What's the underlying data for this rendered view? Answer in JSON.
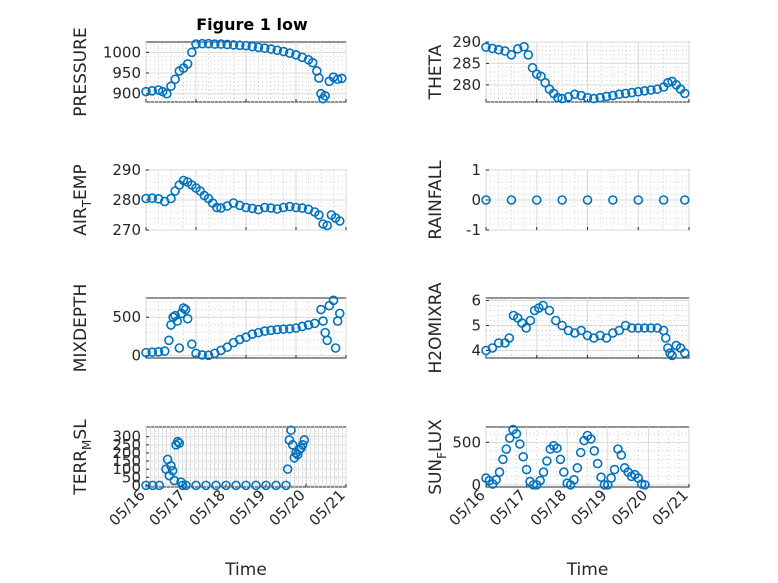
{
  "figure": {
    "title": "Figure 1 low",
    "marker_color": "#0072BD",
    "marker": "circle",
    "grid": "on (major + minor)"
  },
  "chart_data": [
    {
      "type": "scatter",
      "title": "Figure 1 low",
      "ylabel": [
        "PRESSURE"
      ],
      "xlabel": "",
      "xlim": [
        "05/16",
        "05/20"
      ],
      "ylim": [
        880,
        1025
      ],
      "yticks": [
        "900",
        "950",
        "1000"
      ],
      "xticks": [],
      "x": [
        "05/16 00:00",
        "05/16 03:00",
        "05/16 06:00",
        "05/16 08:00",
        "05/16 10:00",
        "05/16 12:00",
        "05/16 14:00",
        "05/16 16:00",
        "05/16 18:00",
        "05/16 20:00",
        "05/16 22:00",
        "05/17 00:00",
        "05/17 03:00",
        "05/17 06:00",
        "05/17 09:00",
        "05/17 12:00",
        "05/17 15:00",
        "05/17 18:00",
        "05/17 21:00",
        "05/18 00:00",
        "05/18 03:00",
        "05/18 06:00",
        "05/18 09:00",
        "05/18 12:00",
        "05/18 15:00",
        "05/18 18:00",
        "05/18 21:00",
        "05/19 00:00",
        "05/19 03:00",
        "05/19 06:00",
        "05/19 08:00",
        "05/19 10:00",
        "05/19 11:00",
        "05/19 12:00",
        "05/19 13:00",
        "05/19 14:00",
        "05/19 16:00",
        "05/19 18:00",
        "05/19 20:00",
        "05/19 22:00"
      ],
      "y": [
        905,
        907,
        909,
        905,
        900,
        918,
        935,
        955,
        962,
        972,
        1000,
        1020,
        1021,
        1021,
        1020,
        1020,
        1019,
        1018,
        1017,
        1016,
        1014,
        1012,
        1010,
        1008,
        1005,
        1002,
        998,
        994,
        988,
        982,
        975,
        955,
        938,
        900,
        888,
        895,
        930,
        940,
        935,
        937
      ]
    },
    {
      "type": "scatter",
      "title": "",
      "ylabel": [
        "THETA"
      ],
      "xlabel": "",
      "xlim": [
        "05/16",
        "05/20"
      ],
      "ylim": [
        276,
        290
      ],
      "yticks": [
        "280",
        "285",
        "290"
      ],
      "xticks": [],
      "x": [
        "05/16 00:00",
        "05/16 03:00",
        "05/16 06:00",
        "05/16 09:00",
        "05/16 12:00",
        "05/16 15:00",
        "05/16 18:00",
        "05/16 20:00",
        "05/16 22:00",
        "05/17 00:00",
        "05/17 02:00",
        "05/17 04:00",
        "05/17 06:00",
        "05/17 08:00",
        "05/17 10:00",
        "05/17 12:00",
        "05/17 15:00",
        "05/17 18:00",
        "05/17 21:00",
        "05/18 00:00",
        "05/18 03:00",
        "05/18 06:00",
        "05/18 09:00",
        "05/18 12:00",
        "05/18 15:00",
        "05/18 18:00",
        "05/18 21:00",
        "05/19 00:00",
        "05/19 03:00",
        "05/19 06:00",
        "05/19 09:00",
        "05/19 12:00",
        "05/19 14:00",
        "05/19 16:00",
        "05/19 18:00",
        "05/19 20:00",
        "05/19 22:00"
      ],
      "y": [
        288.8,
        288.5,
        288.2,
        287.9,
        287.0,
        288.4,
        288.9,
        287.0,
        284.0,
        282.5,
        282.0,
        280.5,
        279.0,
        278.0,
        277.0,
        276.8,
        277.2,
        277.8,
        277.5,
        277.0,
        276.8,
        277.0,
        277.3,
        277.5,
        277.8,
        278.0,
        278.2,
        278.4,
        278.6,
        278.8,
        279.0,
        279.5,
        280.5,
        280.8,
        280.0,
        279.0,
        278.0
      ]
    },
    {
      "type": "scatter",
      "title": "",
      "ylabel": [
        "AIR",
        "T",
        "EMP"
      ],
      "xlabel": "",
      "xlim": [
        "05/16",
        "05/20"
      ],
      "ylim": [
        270,
        290
      ],
      "yticks": [
        "270",
        "280",
        "290"
      ],
      "xticks": [],
      "x": [
        "05/16 00:00",
        "05/16 03:00",
        "05/16 06:00",
        "05/16 09:00",
        "05/16 12:00",
        "05/16 14:00",
        "05/16 16:00",
        "05/16 18:00",
        "05/16 20:00",
        "05/16 22:00",
        "05/17 00:00",
        "05/17 02:00",
        "05/17 04:00",
        "05/17 06:00",
        "05/17 08:00",
        "05/17 10:00",
        "05/17 12:00",
        "05/17 15:00",
        "05/17 18:00",
        "05/17 21:00",
        "05/18 00:00",
        "05/18 03:00",
        "05/18 06:00",
        "05/18 09:00",
        "05/18 12:00",
        "05/18 15:00",
        "05/18 18:00",
        "05/18 21:00",
        "05/19 00:00",
        "05/19 03:00",
        "05/19 06:00",
        "05/19 09:00",
        "05/19 11:00",
        "05/19 13:00",
        "05/19 15:00",
        "05/19 17:00",
        "05/19 19:00",
        "05/19 21:00"
      ],
      "y": [
        280.5,
        280.6,
        280.4,
        279.5,
        280.5,
        283.0,
        285.0,
        286.5,
        286.0,
        285.0,
        284.0,
        283.0,
        281.5,
        280.5,
        279.0,
        277.5,
        277.3,
        278.0,
        279.0,
        278.2,
        277.5,
        277.2,
        276.8,
        277.5,
        277.3,
        277.0,
        277.5,
        277.8,
        277.5,
        277.3,
        276.9,
        276.0,
        275.0,
        272.0,
        271.5,
        275.0,
        274.0,
        273.0
      ]
    },
    {
      "type": "scatter",
      "title": "",
      "ylabel": [
        "RAINFALL"
      ],
      "xlabel": "",
      "xlim": [
        "05/16",
        "05/20"
      ],
      "ylim": [
        -1,
        1
      ],
      "yticks": [
        "-1",
        "0",
        "1"
      ],
      "xticks": [],
      "x": [
        "05/16 00:00",
        "05/16 12:00",
        "05/17 00:00",
        "05/17 12:00",
        "05/18 00:00",
        "05/18 12:00",
        "05/19 00:00",
        "05/19 12:00",
        "05/19 22:00"
      ],
      "y": [
        0,
        0,
        0,
        0,
        0,
        0,
        0,
        0,
        0
      ]
    },
    {
      "type": "scatter",
      "title": "",
      "ylabel": [
        "MIXDEPTH"
      ],
      "xlabel": "",
      "xlim": [
        "05/16",
        "05/20"
      ],
      "ylim": [
        -30,
        750
      ],
      "yticks": [
        "0",
        "500"
      ],
      "xticks": [],
      "x": [
        "05/16 00:00",
        "05/16 03:00",
        "05/16 06:00",
        "05/16 09:00",
        "05/16 11:00",
        "05/16 12:00",
        "05/16 13:00",
        "05/16 14:00",
        "05/16 15:00",
        "05/16 16:00",
        "05/16 17:00",
        "05/16 18:00",
        "05/16 19:00",
        "05/16 20:00",
        "05/16 22:00",
        "05/17 00:00",
        "05/17 03:00",
        "05/17 06:00",
        "05/17 09:00",
        "05/17 12:00",
        "05/17 15:00",
        "05/17 18:00",
        "05/17 21:00",
        "05/18 00:00",
        "05/18 03:00",
        "05/18 06:00",
        "05/18 09:00",
        "05/18 12:00",
        "05/18 15:00",
        "05/18 18:00",
        "05/18 21:00",
        "05/19 00:00",
        "05/19 03:00",
        "05/19 06:00",
        "05/19 09:00",
        "05/19 12:00",
        "05/19 13:00",
        "05/19 14:00",
        "05/19 15:00",
        "05/19 16:00",
        "05/19 18:00",
        "05/19 19:00",
        "05/19 20:00",
        "05/19 21:00"
      ],
      "y": [
        40,
        45,
        50,
        60,
        200,
        400,
        500,
        520,
        450,
        100,
        550,
        620,
        600,
        480,
        150,
        30,
        10,
        5,
        30,
        70,
        110,
        170,
        210,
        240,
        280,
        300,
        320,
        330,
        340,
        345,
        350,
        360,
        380,
        400,
        420,
        600,
        450,
        300,
        200,
        650,
        720,
        100,
        450,
        550
      ]
    },
    {
      "type": "scatter",
      "title": "",
      "ylabel": [
        "H2OMIXRA"
      ],
      "xlabel": "",
      "xlim": [
        "05/16",
        "05/20"
      ],
      "ylim": [
        3.7,
        6.1
      ],
      "yticks": [
        "4",
        "5",
        "6"
      ],
      "xticks": [],
      "x": [
        "05/16 00:00",
        "05/16 03:00",
        "05/16 06:00",
        "05/16 09:00",
        "05/16 11:00",
        "05/16 13:00",
        "05/16 15:00",
        "05/16 17:00",
        "05/16 19:00",
        "05/16 21:00",
        "05/16 23:00",
        "05/17 01:00",
        "05/17 03:00",
        "05/17 06:00",
        "05/17 09:00",
        "05/17 12:00",
        "05/17 15:00",
        "05/17 18:00",
        "05/17 21:00",
        "05/18 00:00",
        "05/18 03:00",
        "05/18 06:00",
        "05/18 09:00",
        "05/18 12:00",
        "05/18 15:00",
        "05/18 18:00",
        "05/18 21:00",
        "05/19 00:00",
        "05/19 03:00",
        "05/19 06:00",
        "05/19 09:00",
        "05/19 12:00",
        "05/19 13:00",
        "05/19 14:00",
        "05/19 15:00",
        "05/19 16:00",
        "05/19 18:00",
        "05/19 20:00",
        "05/19 22:00"
      ],
      "y": [
        4.0,
        4.1,
        4.3,
        4.3,
        4.5,
        5.4,
        5.3,
        5.1,
        4.9,
        5.2,
        5.6,
        5.7,
        5.8,
        5.6,
        5.2,
        5.0,
        4.8,
        4.7,
        4.8,
        4.6,
        4.5,
        4.6,
        4.5,
        4.7,
        4.8,
        5.0,
        4.9,
        4.9,
        4.9,
        4.9,
        4.9,
        4.8,
        4.5,
        4.1,
        3.9,
        3.8,
        4.2,
        4.1,
        3.9
      ]
    },
    {
      "type": "scatter",
      "title": "",
      "ylabel": [
        "TERR",
        "M",
        "SL"
      ],
      "xlabel": "Time",
      "xlim": [
        "05/16",
        "05/21"
      ],
      "ylim": [
        -10,
        360
      ],
      "yticks": [
        "0",
        "50",
        "100",
        "150",
        "200",
        "250",
        "300"
      ],
      "xticks": [
        "05/16",
        "05/17",
        "05/18",
        "05/19",
        "05/20",
        "05/21"
      ],
      "x": [
        "05/16 00:00",
        "05/16 04:00",
        "05/16 08:00",
        "05/16 12:00",
        "05/16 13:00",
        "05/16 14:00",
        "05/16 15:00",
        "05/16 16:00",
        "05/16 17:00",
        "05/16 18:00",
        "05/16 19:00",
        "05/16 20:00",
        "05/16 21:00",
        "05/16 22:00",
        "05/17 00:00",
        "05/17 06:00",
        "05/17 12:00",
        "05/17 18:00",
        "05/18 00:00",
        "05/18 06:00",
        "05/18 12:00",
        "05/18 18:00",
        "05/19 00:00",
        "05/19 06:00",
        "05/19 12:00",
        "05/19 13:00",
        "05/19 14:00",
        "05/19 15:00",
        "05/19 16:00",
        "05/19 17:00",
        "05/19 18:00",
        "05/19 19:00",
        "05/19 20:00",
        "05/19 21:00",
        "05/19 22:00",
        "05/19 23:00"
      ],
      "y": [
        0,
        0,
        0,
        100,
        160,
        60,
        120,
        90,
        30,
        250,
        270,
        260,
        20,
        0,
        0,
        0,
        0,
        0,
        0,
        0,
        0,
        0,
        0,
        0,
        0,
        100,
        280,
        340,
        250,
        170,
        200,
        190,
        220,
        230,
        250,
        280
      ]
    },
    {
      "type": "scatter",
      "title": "",
      "ylabel": [
        "SUN",
        "F",
        "LUX"
      ],
      "xlabel": "Time",
      "xlim": [
        "05/16",
        "05/21"
      ],
      "ylim": [
        -25,
        680
      ],
      "yticks": [
        "0",
        "500"
      ],
      "xticks": [
        "05/16",
        "05/17",
        "05/18",
        "05/19",
        "05/20",
        "05/21"
      ],
      "x": [
        "05/16 00:00",
        "05/16 02:00",
        "05/16 04:00",
        "05/16 06:00",
        "05/16 08:00",
        "05/16 10:00",
        "05/16 12:00",
        "05/16 14:00",
        "05/16 16:00",
        "05/16 18:00",
        "05/16 20:00",
        "05/16 22:00",
        "05/17 00:00",
        "05/17 02:00",
        "05/17 04:00",
        "05/17 06:00",
        "05/17 08:00",
        "05/17 10:00",
        "05/17 12:00",
        "05/17 14:00",
        "05/17 16:00",
        "05/17 18:00",
        "05/17 20:00",
        "05/17 22:00",
        "05/18 00:00",
        "05/18 02:00",
        "05/18 04:00",
        "05/18 06:00",
        "05/18 08:00",
        "05/18 10:00",
        "05/18 12:00",
        "05/18 14:00",
        "05/18 16:00",
        "05/18 18:00",
        "05/18 20:00",
        "05/18 22:00",
        "05/19 00:00",
        "05/19 02:00",
        "05/19 04:00",
        "05/19 06:00",
        "05/19 08:00",
        "05/19 10:00",
        "05/19 12:00",
        "05/19 14:00",
        "05/19 16:00",
        "05/19 18:00",
        "05/19 20:00",
        "05/19 22:00"
      ],
      "y": [
        80,
        50,
        10,
        60,
        150,
        300,
        420,
        550,
        650,
        600,
        480,
        330,
        180,
        40,
        0,
        0,
        50,
        150,
        280,
        420,
        460,
        430,
        300,
        150,
        20,
        0,
        60,
        200,
        380,
        520,
        580,
        540,
        400,
        250,
        90,
        0,
        0,
        80,
        180,
        420,
        350,
        200,
        150,
        100,
        120,
        80,
        10,
        0
      ]
    }
  ]
}
